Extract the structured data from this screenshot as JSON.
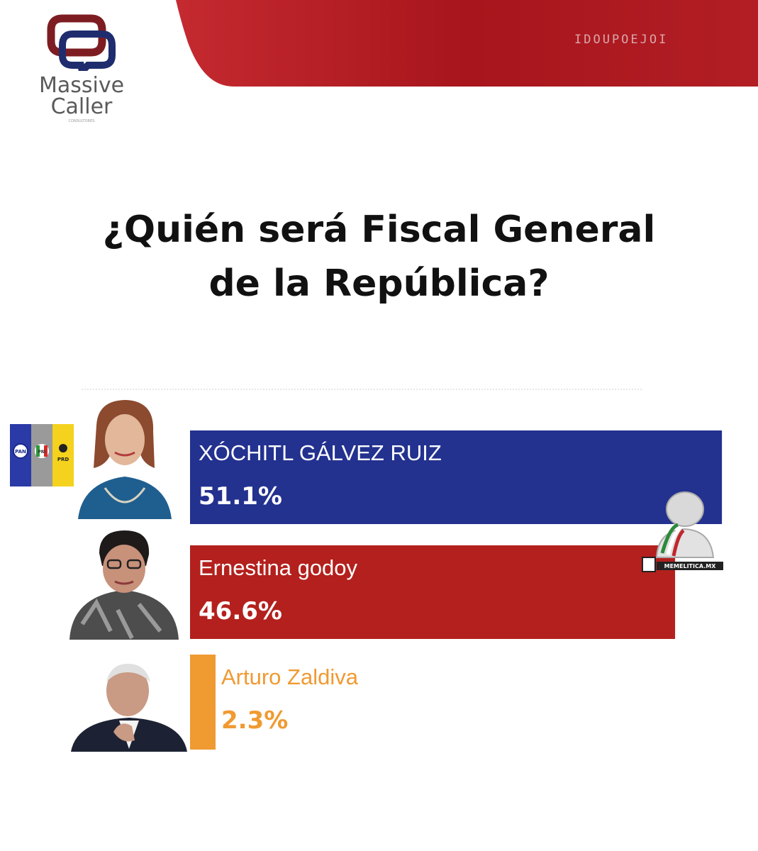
{
  "logo": {
    "name_line1": "Massive",
    "name_line2": "Caller",
    "tagline": "CONSULTORES"
  },
  "banner": {
    "text": "IDOUPOEJOI",
    "color": "#b11f24"
  },
  "party_badges": [
    "PAN",
    "PRI",
    "PRD"
  ],
  "watermark": "MEMELITICA.MX",
  "chart_data": {
    "type": "bar",
    "orientation": "horizontal",
    "title_lines": [
      "¿Quién será Fiscal General",
      "de la República?"
    ],
    "categories": [
      "XÓCHITL GÁLVEZ RUIZ",
      "Ernestina godoy",
      "Arturo Zaldiva"
    ],
    "values": [
      51.1,
      46.6,
      2.3
    ],
    "value_labels": [
      "51.1%",
      "46.6%",
      "2.3%"
    ],
    "colors": [
      "#23318f",
      "#b3201d",
      "#f09a32"
    ],
    "label_colors": [
      "#ffffff",
      "#ffffff",
      "#f09a32"
    ],
    "xlim": [
      0,
      53
    ],
    "grid": false,
    "legend": "none"
  }
}
